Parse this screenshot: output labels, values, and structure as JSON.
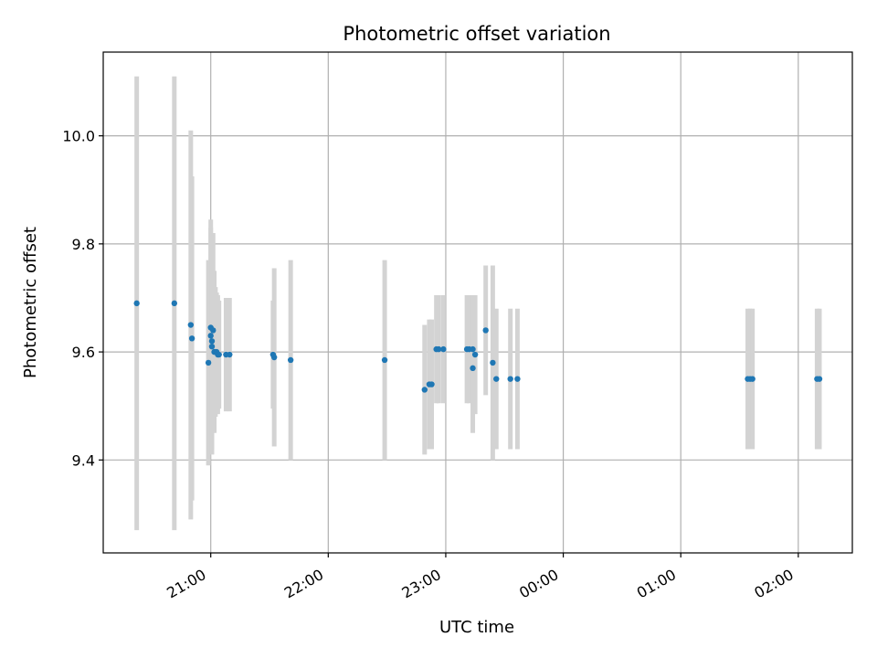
{
  "chart_data": {
    "type": "scatter",
    "title": "Photometric offset variation",
    "xlabel": "UTC time",
    "ylabel": "Photometric offset",
    "x_ticks": [
      {
        "t": 0.0,
        "label": "21:00"
      },
      {
        "t": 1.0,
        "label": "22:00"
      },
      {
        "t": 2.0,
        "label": "23:00"
      },
      {
        "t": 3.0,
        "label": "00:00"
      },
      {
        "t": 4.0,
        "label": "01:00"
      },
      {
        "t": 5.0,
        "label": "02:00"
      }
    ],
    "y_ticks": [
      9.4,
      9.6,
      9.8,
      10.0
    ],
    "xlim": [
      -0.915,
      5.46
    ],
    "ylim": [
      9.228,
      10.155
    ],
    "grid": true,
    "colors": {
      "point": "#1f77b4",
      "errorbar": "#d3d3d3"
    },
    "points": [
      {
        "t": -0.63,
        "y": 9.69,
        "err": 0.42
      },
      {
        "t": -0.31,
        "y": 9.69,
        "err": 0.42
      },
      {
        "t": -0.17,
        "y": 9.65,
        "err": 0.36
      },
      {
        "t": -0.16,
        "y": 9.625,
        "err": 0.3
      },
      {
        "t": -0.02,
        "y": 9.58,
        "err": 0.19
      },
      {
        "t": 0.0,
        "y": 9.645,
        "err": 0.2
      },
      {
        "t": 0.0,
        "y": 9.63,
        "err": 0.2
      },
      {
        "t": 0.01,
        "y": 9.61,
        "err": 0.2
      },
      {
        "t": 0.01,
        "y": 9.62,
        "err": 0.2
      },
      {
        "t": 0.02,
        "y": 9.64,
        "err": 0.18
      },
      {
        "t": 0.03,
        "y": 9.6,
        "err": 0.15
      },
      {
        "t": 0.04,
        "y": 9.6,
        "err": 0.12
      },
      {
        "t": 0.05,
        "y": 9.6,
        "err": 0.11
      },
      {
        "t": 0.06,
        "y": 9.595,
        "err": 0.11
      },
      {
        "t": 0.07,
        "y": 9.595,
        "err": 0.1
      },
      {
        "t": 0.13,
        "y": 9.595,
        "err": 0.105
      },
      {
        "t": 0.16,
        "y": 9.595,
        "err": 0.105
      },
      {
        "t": 0.53,
        "y": 9.595,
        "err": 0.1
      },
      {
        "t": 0.54,
        "y": 9.59,
        "err": 0.165
      },
      {
        "t": 0.68,
        "y": 9.585,
        "err": 0.185
      },
      {
        "t": 1.48,
        "y": 9.585,
        "err": 0.185
      },
      {
        "t": 1.82,
        "y": 9.53,
        "err": 0.12
      },
      {
        "t": 1.86,
        "y": 9.54,
        "err": 0.12
      },
      {
        "t": 1.88,
        "y": 9.54,
        "err": 0.12
      },
      {
        "t": 1.92,
        "y": 9.605,
        "err": 0.1
      },
      {
        "t": 1.94,
        "y": 9.605,
        "err": 0.1
      },
      {
        "t": 1.98,
        "y": 9.605,
        "err": 0.1
      },
      {
        "t": 2.18,
        "y": 9.605,
        "err": 0.1
      },
      {
        "t": 2.2,
        "y": 9.605,
        "err": 0.1
      },
      {
        "t": 2.23,
        "y": 9.605,
        "err": 0.1
      },
      {
        "t": 2.23,
        "y": 9.57,
        "err": 0.12
      },
      {
        "t": 2.25,
        "y": 9.595,
        "err": 0.11
      },
      {
        "t": 2.34,
        "y": 9.64,
        "err": 0.12
      },
      {
        "t": 2.4,
        "y": 9.58,
        "err": 0.18
      },
      {
        "t": 2.43,
        "y": 9.55,
        "err": 0.13
      },
      {
        "t": 2.55,
        "y": 9.55,
        "err": 0.13
      },
      {
        "t": 2.61,
        "y": 9.55,
        "err": 0.13
      },
      {
        "t": 4.57,
        "y": 9.55,
        "err": 0.13
      },
      {
        "t": 4.59,
        "y": 9.55,
        "err": 0.13
      },
      {
        "t": 4.61,
        "y": 9.55,
        "err": 0.13
      },
      {
        "t": 5.16,
        "y": 9.55,
        "err": 0.13
      },
      {
        "t": 5.18,
        "y": 9.55,
        "err": 0.13
      }
    ]
  }
}
